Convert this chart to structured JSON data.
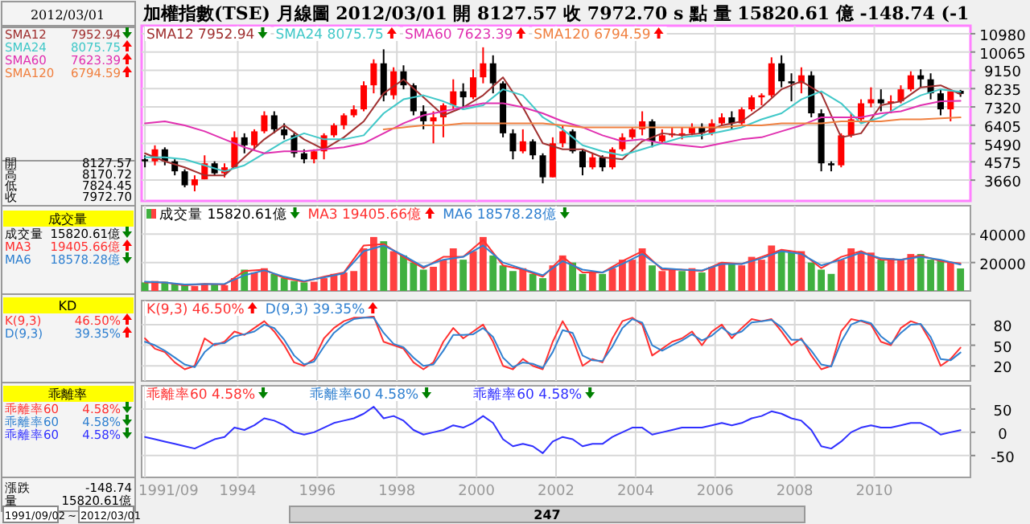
{
  "chart_data": [
    {
      "type": "candlestick",
      "title": "加權指數(TSE)  月線圖  2012/03/01  開 8127.57  收 7972.70 s 點  量 15820.61 億  -148.74 (-1",
      "x": [
        "1991-09",
        "1991-12",
        "1992-03",
        "1992-06",
        "1992-09",
        "1992-12",
        "1993-03",
        "1993-06",
        "1993-09",
        "1993-12",
        "1994-03",
        "1994-06",
        "1994-09",
        "1994-12",
        "1995-03",
        "1995-06",
        "1995-09",
        "1995-12",
        "1996-03",
        "1996-06",
        "1996-09",
        "1996-12",
        "1997-03",
        "1997-06",
        "1997-09",
        "1997-12",
        "1998-03",
        "1998-06",
        "1998-09",
        "1998-12",
        "1999-03",
        "1999-06",
        "1999-09",
        "1999-12",
        "2000-03",
        "2000-06",
        "2000-09",
        "2000-12",
        "2001-03",
        "2001-06",
        "2001-09",
        "2001-12",
        "2002-03",
        "2002-06",
        "2002-09",
        "2002-12",
        "2003-03",
        "2003-06",
        "2003-09",
        "2003-12",
        "2004-03",
        "2004-06",
        "2004-09",
        "2004-12",
        "2005-03",
        "2005-06",
        "2005-09",
        "2005-12",
        "2006-03",
        "2006-06",
        "2006-09",
        "2006-12",
        "2007-03",
        "2007-06",
        "2007-09",
        "2007-12",
        "2008-03",
        "2008-06",
        "2008-09",
        "2008-12",
        "2009-03",
        "2009-06",
        "2009-09",
        "2009-12",
        "2010-03",
        "2010-06",
        "2010-09",
        "2010-12",
        "2011-03",
        "2011-06",
        "2011-09",
        "2011-12",
        "2012-03"
      ],
      "ohlc": [
        [
          4700,
          4900,
          4300,
          4600
        ],
        [
          4600,
          5400,
          4400,
          5200
        ],
        [
          5200,
          5300,
          4400,
          4600
        ],
        [
          4600,
          4700,
          3900,
          4100
        ],
        [
          4100,
          4200,
          3300,
          3400
        ],
        [
          3400,
          3900,
          3100,
          3700
        ],
        [
          3700,
          4900,
          3700,
          4500
        ],
        [
          4500,
          4600,
          3900,
          4000
        ],
        [
          4000,
          4500,
          3800,
          4300
        ],
        [
          4300,
          6100,
          4300,
          5800
        ],
        [
          5800,
          6000,
          5000,
          5400
        ],
        [
          5400,
          6200,
          5200,
          6100
        ],
        [
          6100,
          7100,
          6000,
          6900
        ],
        [
          6900,
          7100,
          6000,
          6200
        ],
        [
          6200,
          6500,
          5700,
          5900
        ],
        [
          5900,
          6000,
          4800,
          5000
        ],
        [
          5000,
          5200,
          4500,
          4700
        ],
        [
          4700,
          5200,
          4500,
          5100
        ],
        [
          5100,
          6000,
          4700,
          5900
        ],
        [
          5900,
          6500,
          5800,
          6400
        ],
        [
          6400,
          7000,
          6200,
          6900
        ],
        [
          6900,
          7400,
          6800,
          7200
        ],
        [
          7200,
          8600,
          7100,
          8400
        ],
        [
          8400,
          9700,
          8000,
          9500
        ],
        [
          9500,
          10200,
          7600,
          7900
        ],
        [
          7900,
          9300,
          7700,
          9100
        ],
        [
          9100,
          9400,
          8200,
          8400
        ],
        [
          8400,
          8500,
          6900,
          7100
        ],
        [
          7100,
          7400,
          6200,
          6600
        ],
        [
          6600,
          7100,
          5500,
          6800
        ],
        [
          6800,
          7500,
          5800,
          7400
        ],
        [
          7400,
          8700,
          7200,
          8100
        ],
        [
          8100,
          8500,
          7300,
          7800
        ],
        [
          7800,
          9200,
          7700,
          8800
        ],
        [
          8800,
          10300,
          8500,
          9500
        ],
        [
          9500,
          9900,
          8000,
          8500
        ],
        [
          8500,
          8600,
          5800,
          6000
        ],
        [
          6000,
          6200,
          4700,
          5100
        ],
        [
          5100,
          6200,
          5000,
          5600
        ],
        [
          5600,
          5700,
          4700,
          4900
        ],
        [
          4900,
          5000,
          3500,
          3800
        ],
        [
          3800,
          5800,
          3800,
          5500
        ],
        [
          5500,
          6400,
          5300,
          6100
        ],
        [
          6100,
          6200,
          5000,
          5100
        ],
        [
          5100,
          5200,
          3900,
          4300
        ],
        [
          4300,
          5000,
          4200,
          4800
        ],
        [
          4800,
          4900,
          4100,
          4300
        ],
        [
          4300,
          5300,
          4200,
          5200
        ],
        [
          5200,
          6000,
          5100,
          5800
        ],
        [
          5800,
          6300,
          5700,
          6200
        ],
        [
          6200,
          7100,
          5900,
          6600
        ],
        [
          6600,
          6700,
          5300,
          5600
        ],
        [
          5600,
          6200,
          5500,
          5900
        ],
        [
          5900,
          6300,
          5800,
          6000
        ],
        [
          6000,
          6300,
          5700,
          6000
        ],
        [
          6000,
          6500,
          5900,
          6300
        ],
        [
          6300,
          6500,
          5700,
          6000
        ],
        [
          6000,
          6700,
          5900,
          6500
        ],
        [
          6500,
          7000,
          6400,
          6800
        ],
        [
          6800,
          7100,
          6200,
          6500
        ],
        [
          6500,
          7300,
          6400,
          7200
        ],
        [
          7200,
          7900,
          7100,
          7800
        ],
        [
          7800,
          8000,
          7400,
          7900
        ],
        [
          7900,
          9800,
          7800,
          9500
        ],
        [
          9500,
          9900,
          8300,
          8600
        ],
        [
          8600,
          9000,
          7600,
          8500
        ],
        [
          8500,
          9300,
          8000,
          8900
        ],
        [
          8900,
          9100,
          6800,
          7000
        ],
        [
          7000,
          7200,
          4100,
          4500
        ],
        [
          4500,
          4600,
          4100,
          4400
        ],
        [
          4400,
          6000,
          4300,
          5900
        ],
        [
          5900,
          7000,
          5800,
          6700
        ],
        [
          6700,
          7700,
          6500,
          7500
        ],
        [
          7500,
          8300,
          7300,
          7700
        ],
        [
          7700,
          8200,
          7100,
          7500
        ],
        [
          7500,
          7900,
          7000,
          7600
        ],
        [
          7600,
          8400,
          7500,
          8200
        ],
        [
          8200,
          9100,
          8100,
          8900
        ],
        [
          8900,
          9200,
          8300,
          8700
        ],
        [
          8700,
          9000,
          7700,
          8000
        ],
        [
          8000,
          8200,
          6900,
          7200
        ],
        [
          7200,
          8100,
          6600,
          8100
        ],
        [
          8127.57,
          8170.72,
          7824.45,
          7972.7
        ]
      ],
      "series": [
        {
          "type": "line",
          "name": "SMA12 7952.94",
          "color": "#a03030",
          "x": [
            "1991-09",
            "1992-03",
            "1992-09",
            "1993-03",
            "1993-09",
            "1994-03",
            "1994-09",
            "1995-03",
            "1995-09",
            "1996-03",
            "1996-09",
            "1997-03",
            "1997-09",
            "1998-03",
            "1998-09",
            "1999-03",
            "1999-09",
            "2000-03",
            "2000-09",
            "2001-03",
            "2001-09",
            "2002-03",
            "2002-09",
            "2003-03",
            "2003-09",
            "2004-03",
            "2004-09",
            "2005-03",
            "2005-09",
            "2006-03",
            "2006-09",
            "2007-03",
            "2007-09",
            "2008-03",
            "2008-09",
            "2009-03",
            "2009-09",
            "2010-03",
            "2010-09",
            "2011-03",
            "2011-09",
            "2012-03"
          ],
          "values": [
            5000,
            4600,
            4300,
            3900,
            3900,
            4800,
            5700,
            6400,
            5700,
            5200,
            5800,
            6600,
            8000,
            8700,
            7800,
            6900,
            7300,
            7900,
            8800,
            7300,
            5500,
            5200,
            5200,
            4800,
            4700,
            5600,
            6000,
            5900,
            6000,
            6400,
            6600,
            7300,
            8200,
            8600,
            8000,
            5800,
            6000,
            7400,
            7600,
            8300,
            8400,
            7952.94
          ]
        },
        {
          "type": "line",
          "name": "SMA24 8075.75",
          "color": "#40c8c8",
          "x": [
            "1991-09",
            "1992-03",
            "1992-09",
            "1993-03",
            "1993-09",
            "1994-03",
            "1994-09",
            "1995-03",
            "1995-09",
            "1996-03",
            "1996-09",
            "1997-03",
            "1997-09",
            "1998-03",
            "1998-09",
            "1999-03",
            "1999-09",
            "2000-03",
            "2000-09",
            "2001-03",
            "2001-09",
            "2002-03",
            "2002-09",
            "2003-03",
            "2003-09",
            "2004-03",
            "2004-09",
            "2005-03",
            "2005-09",
            "2006-03",
            "2006-09",
            "2007-03",
            "2007-09",
            "2008-03",
            "2008-09",
            "2009-03",
            "2009-09",
            "2010-03",
            "2010-09",
            "2011-03",
            "2011-09",
            "2012-03"
          ],
          "values": [
            4800,
            4800,
            4700,
            4400,
            4100,
            4400,
            5000,
            5600,
            6000,
            5700,
            5700,
            5900,
            7000,
            7700,
            7900,
            7600,
            7200,
            7400,
            8200,
            7900,
            6800,
            6200,
            5400,
            5100,
            4900,
            5200,
            5500,
            5800,
            5900,
            6100,
            6300,
            6700,
            7000,
            7700,
            8100,
            7500,
            6500,
            6800,
            7400,
            7900,
            8200,
            8075.75
          ]
        },
        {
          "type": "line",
          "name": "SMA60 7623.39",
          "color": "#e030b0",
          "x": [
            "1991-09",
            "1992-03",
            "1992-09",
            "1993-03",
            "1993-09",
            "1994-03",
            "1994-09",
            "1995-03",
            "1995-09",
            "1996-03",
            "1996-09",
            "1997-03",
            "1997-09",
            "1998-03",
            "1998-09",
            "1999-03",
            "1999-09",
            "2000-03",
            "2000-09",
            "2001-03",
            "2001-09",
            "2002-03",
            "2002-09",
            "2003-03",
            "2003-09",
            "2004-03",
            "2004-09",
            "2005-03",
            "2005-09",
            "2006-03",
            "2006-09",
            "2007-03",
            "2007-09",
            "2008-03",
            "2008-09",
            "2009-03",
            "2009-09",
            "2010-03",
            "2010-09",
            "2011-03",
            "2011-09",
            "2012-03"
          ],
          "values": [
            6500,
            6600,
            6400,
            6100,
            5700,
            5300,
            5000,
            5100,
            5100,
            5200,
            5300,
            5500,
            6000,
            6500,
            6900,
            7100,
            7300,
            7500,
            7500,
            7300,
            7000,
            6600,
            6300,
            5900,
            5600,
            5700,
            5500,
            5400,
            5300,
            5500,
            5700,
            5800,
            6100,
            6400,
            6800,
            6800,
            6800,
            7000,
            7100,
            7400,
            7600,
            7623.39
          ]
        },
        {
          "type": "line",
          "name": "SMA120 6794.59",
          "color": "#f08040",
          "x": [
            "1997-09",
            "1998-03",
            "1998-09",
            "1999-03",
            "1999-09",
            "2000-03",
            "2000-09",
            "2001-03",
            "2001-09",
            "2002-03",
            "2002-09",
            "2003-03",
            "2003-09",
            "2004-03",
            "2004-09",
            "2005-03",
            "2005-09",
            "2006-03",
            "2006-09",
            "2007-03",
            "2007-09",
            "2008-03",
            "2008-09",
            "2009-03",
            "2009-09",
            "2010-03",
            "2010-09",
            "2011-03",
            "2011-09",
            "2012-03"
          ],
          "values": [
            6200,
            6300,
            6400,
            6400,
            6500,
            6500,
            6500,
            6500,
            6500,
            6400,
            6300,
            6300,
            6300,
            6300,
            6300,
            6300,
            6300,
            6300,
            6400,
            6400,
            6500,
            6500,
            6500,
            6600,
            6600,
            6600,
            6700,
            6700,
            6750,
            6794.59
          ]
        }
      ],
      "xlim": [
        "1991-08",
        "2012-06"
      ],
      "xticks": [
        "1991-09",
        "1994",
        "1996",
        "1998",
        "2000",
        "2002",
        "2004",
        "2006",
        "2008",
        "2010"
      ],
      "ylim": [
        2620,
        11380
      ],
      "yticks": [
        3660,
        4575,
        5490,
        6405,
        7320,
        8235,
        9150,
        10065,
        10980
      ],
      "grid": true,
      "legend": "top left",
      "tick_labels": "y"
    },
    {
      "type": "bar",
      "x": [
        "1991-09",
        "1991-12",
        "1992-03",
        "1992-06",
        "1992-09",
        "1992-12",
        "1993-03",
        "1993-06",
        "1993-09",
        "1993-12",
        "1994-03",
        "1994-06",
        "1994-09",
        "1994-12",
        "1995-03",
        "1995-06",
        "1995-09",
        "1995-12",
        "1996-03",
        "1996-06",
        "1996-09",
        "1996-12",
        "1997-03",
        "1997-06",
        "1997-09",
        "1997-12",
        "1998-03",
        "1998-06",
        "1998-09",
        "1998-12",
        "1999-03",
        "1999-06",
        "1999-09",
        "1999-12",
        "2000-03",
        "2000-06",
        "2000-09",
        "2000-12",
        "2001-03",
        "2001-06",
        "2001-09",
        "2001-12",
        "2002-03",
        "2002-06",
        "2002-09",
        "2002-12",
        "2003-03",
        "2003-06",
        "2003-09",
        "2003-12",
        "2004-03",
        "2004-06",
        "2004-09",
        "2004-12",
        "2005-03",
        "2005-06",
        "2005-09",
        "2005-12",
        "2006-03",
        "2006-06",
        "2006-09",
        "2006-12",
        "2007-03",
        "2007-06",
        "2007-09",
        "2007-12",
        "2008-03",
        "2008-06",
        "2008-09",
        "2008-12",
        "2009-03",
        "2009-06",
        "2009-09",
        "2009-12",
        "2010-03",
        "2010-06",
        "2010-09",
        "2010-12",
        "2011-03",
        "2011-06",
        "2011-09",
        "2011-12",
        "2012-03"
      ],
      "series": [
        {
          "name": "成交量 15820.61億",
          "colors": [
            "#40b040",
            "#ff4040",
            "#40b040",
            "#40b040",
            "#40b040",
            "#ff4040",
            "#ff4040",
            "#40b040",
            "#ff4040",
            "#ff4040",
            "#40b040",
            "#ff4040",
            "#ff4040",
            "#40b040",
            "#40b040",
            "#40b040",
            "#40b040",
            "#ff4040",
            "#ff4040",
            "#ff4040",
            "#ff4040",
            "#ff4040",
            "#ff4040",
            "#ff4040",
            "#40b040",
            "#ff4040",
            "#40b040",
            "#40b040",
            "#40b040",
            "#ff4040",
            "#ff4040",
            "#ff4040",
            "#40b040",
            "#ff4040",
            "#ff4040",
            "#40b040",
            "#40b040",
            "#40b040",
            "#ff4040",
            "#40b040",
            "#40b040",
            "#ff4040",
            "#ff4040",
            "#40b040",
            "#40b040",
            "#ff4040",
            "#40b040",
            "#ff4040",
            "#ff4040",
            "#ff4040",
            "#ff4040",
            "#40b040",
            "#ff4040",
            "#ff4040",
            "#40b040",
            "#ff4040",
            "#40b040",
            "#ff4040",
            "#ff4040",
            "#40b040",
            "#ff4040",
            "#ff4040",
            "#ff4040",
            "#ff4040",
            "#40b040",
            "#40b040",
            "#ff4040",
            "#40b040",
            "#40b040",
            "#40b040",
            "#ff4040",
            "#ff4040",
            "#ff4040",
            "#ff4040",
            "#40b040",
            "#ff4040",
            "#ff4040",
            "#ff4040",
            "#40b040",
            "#40b040",
            "#40b040",
            "#ff4040",
            "#40b040"
          ],
          "values": [
            6000,
            7000,
            6500,
            5000,
            4000,
            3500,
            5000,
            4500,
            4000,
            9000,
            15000,
            13000,
            16000,
            12000,
            9000,
            7000,
            6000,
            6500,
            9000,
            12000,
            13000,
            14000,
            30000,
            38000,
            35000,
            28000,
            25000,
            20000,
            15000,
            17000,
            22000,
            30000,
            22000,
            28000,
            38000,
            25000,
            18000,
            14000,
            16000,
            12000,
            9000,
            18000,
            25000,
            20000,
            12000,
            13000,
            12000,
            16000,
            22000,
            22000,
            30000,
            18000,
            14000,
            15000,
            14000,
            16000,
            13000,
            17000,
            20000,
            19000,
            18000,
            24000,
            22000,
            32000,
            28000,
            27000,
            28000,
            20000,
            15000,
            12000,
            22000,
            30000,
            27000,
            27000,
            22000,
            23000,
            22000,
            26000,
            26000,
            22000,
            22000,
            20000,
            15820.61
          ]
        },
        {
          "type": "line",
          "name": "MA3 19405.66億",
          "color": "#ff3030",
          "x": [
            "1991-09",
            "1992-03",
            "1992-09",
            "1993-03",
            "1993-09",
            "1994-03",
            "1994-09",
            "1995-03",
            "1995-09",
            "1996-03",
            "1996-09",
            "1997-03",
            "1997-09",
            "1998-03",
            "1998-09",
            "1999-03",
            "1999-09",
            "2000-03",
            "2000-09",
            "2001-03",
            "2001-09",
            "2002-03",
            "2002-09",
            "2003-03",
            "2003-09",
            "2004-03",
            "2004-09",
            "2005-03",
            "2005-09",
            "2006-03",
            "2006-09",
            "2007-03",
            "2007-09",
            "2008-03",
            "2008-09",
            "2009-03",
            "2009-09",
            "2010-03",
            "2010-09",
            "2011-03",
            "2011-09",
            "2012-03"
          ],
          "values": [
            6000,
            6000,
            4000,
            5000,
            4500,
            14000,
            15000,
            9000,
            6500,
            10000,
            13000,
            32000,
            33000,
            24000,
            16000,
            24000,
            24000,
            36000,
            18000,
            15000,
            10000,
            24000,
            13000,
            13000,
            21000,
            28000,
            15000,
            15000,
            14000,
            20000,
            19000,
            24000,
            29000,
            27000,
            16000,
            24000,
            28000,
            22000,
            22000,
            25000,
            21000,
            19405.66
          ]
        },
        {
          "type": "line",
          "name": "MA6 18578.28億",
          "color": "#3080d0",
          "x": [
            "1991-09",
            "1992-03",
            "1992-09",
            "1993-03",
            "1993-09",
            "1994-03",
            "1994-09",
            "1995-03",
            "1995-09",
            "1996-03",
            "1996-09",
            "1997-03",
            "1997-09",
            "1998-03",
            "1998-09",
            "1999-03",
            "1999-09",
            "2000-03",
            "2000-09",
            "2001-03",
            "2001-09",
            "2002-03",
            "2002-09",
            "2003-03",
            "2003-09",
            "2004-03",
            "2004-09",
            "2005-03",
            "2005-09",
            "2006-03",
            "2006-09",
            "2007-03",
            "2007-09",
            "2008-03",
            "2008-09",
            "2009-03",
            "2009-09",
            "2010-03",
            "2010-09",
            "2011-03",
            "2011-09",
            "2012-03"
          ],
          "values": [
            6500,
            6000,
            4500,
            4800,
            5000,
            11000,
            14500,
            10000,
            7000,
            9500,
            12500,
            28000,
            32000,
            25000,
            17000,
            22000,
            24000,
            32000,
            20000,
            15500,
            11000,
            21000,
            15000,
            13000,
            19000,
            26000,
            16000,
            15000,
            14500,
            19000,
            19000,
            23000,
            28000,
            26000,
            18000,
            22000,
            27000,
            23000,
            22000,
            24000,
            22000,
            18578.28
          ]
        }
      ],
      "xlim": [
        "1991-08",
        "2012-06"
      ],
      "xticks": [
        "1991-09",
        "1994",
        "1996",
        "1998",
        "2000",
        "2002",
        "2004",
        "2006",
        "2008",
        "2010"
      ],
      "ylim": [
        0,
        60000
      ],
      "yticks": [
        20000,
        40000
      ],
      "grid": true,
      "legend": "top left",
      "tick_labels": "y"
    },
    {
      "type": "line",
      "x": [
        "1991-09",
        "1991-12",
        "1992-03",
        "1992-06",
        "1992-09",
        "1992-12",
        "1993-03",
        "1993-06",
        "1993-09",
        "1993-12",
        "1994-03",
        "1994-06",
        "1994-09",
        "1994-12",
        "1995-03",
        "1995-06",
        "1995-09",
        "1995-12",
        "1996-03",
        "1996-06",
        "1996-09",
        "1996-12",
        "1997-03",
        "1997-06",
        "1997-09",
        "1997-12",
        "1998-03",
        "1998-06",
        "1998-09",
        "1998-12",
        "1999-03",
        "1999-06",
        "1999-09",
        "1999-12",
        "2000-03",
        "2000-06",
        "2000-09",
        "2000-12",
        "2001-03",
        "2001-06",
        "2001-09",
        "2001-12",
        "2002-03",
        "2002-06",
        "2002-09",
        "2002-12",
        "2003-03",
        "2003-06",
        "2003-09",
        "2003-12",
        "2004-03",
        "2004-06",
        "2004-09",
        "2004-12",
        "2005-03",
        "2005-06",
        "2005-09",
        "2005-12",
        "2006-03",
        "2006-06",
        "2006-09",
        "2006-12",
        "2007-03",
        "2007-06",
        "2007-09",
        "2007-12",
        "2008-03",
        "2008-06",
        "2008-09",
        "2008-12",
        "2009-03",
        "2009-06",
        "2009-09",
        "2009-12",
        "2010-03",
        "2010-06",
        "2010-09",
        "2010-12",
        "2011-03",
        "2011-06",
        "2011-09",
        "2011-12",
        "2012-03"
      ],
      "series": [
        {
          "name": "K(9,3) 46.50%",
          "color": "#ff3030",
          "values": [
            60,
            45,
            40,
            25,
            15,
            20,
            60,
            50,
            55,
            70,
            65,
            75,
            85,
            70,
            50,
            25,
            20,
            30,
            60,
            75,
            85,
            90,
            90,
            92,
            55,
            50,
            45,
            25,
            15,
            25,
            55,
            75,
            60,
            70,
            80,
            55,
            20,
            15,
            30,
            20,
            15,
            55,
            85,
            60,
            20,
            30,
            25,
            60,
            85,
            90,
            80,
            35,
            45,
            55,
            60,
            70,
            50,
            70,
            80,
            60,
            75,
            88,
            85,
            88,
            70,
            50,
            60,
            35,
            15,
            20,
            70,
            88,
            85,
            80,
            55,
            50,
            75,
            85,
            80,
            55,
            20,
            30,
            46.5
          ]
        },
        {
          "name": "D(9,3) 39.35%",
          "color": "#3080d0",
          "values": [
            55,
            50,
            42,
            32,
            22,
            18,
            40,
            52,
            53,
            63,
            66,
            70,
            80,
            75,
            58,
            35,
            22,
            26,
            48,
            68,
            80,
            88,
            90,
            90,
            68,
            52,
            47,
            32,
            20,
            22,
            42,
            65,
            65,
            66,
            75,
            62,
            32,
            18,
            25,
            23,
            17,
            40,
            72,
            68,
            35,
            28,
            27,
            48,
            75,
            88,
            83,
            50,
            42,
            50,
            57,
            66,
            57,
            64,
            76,
            65,
            70,
            83,
            85,
            87,
            76,
            58,
            58,
            42,
            22,
            19,
            55,
            80,
            86,
            82,
            63,
            52,
            68,
            80,
            81,
            62,
            30,
            28,
            39.35
          ]
        }
      ],
      "xlim": [
        "1991-08",
        "2012-06"
      ],
      "xticks": [
        "1991-09",
        "1994",
        "1996",
        "1998",
        "2000",
        "2002",
        "2004",
        "2006",
        "2008",
        "2010"
      ],
      "ylim": [
        -2,
        115
      ],
      "yticks": [
        20,
        50,
        80
      ],
      "grid": true,
      "legend": "top left",
      "tick_labels": "y"
    },
    {
      "type": "line",
      "x": [
        "1991-09",
        "1991-12",
        "1992-03",
        "1992-06",
        "1992-09",
        "1992-12",
        "1993-03",
        "1993-06",
        "1993-09",
        "1993-12",
        "1994-03",
        "1994-06",
        "1994-09",
        "1994-12",
        "1995-03",
        "1995-06",
        "1995-09",
        "1995-12",
        "1996-03",
        "1996-06",
        "1996-09",
        "1996-12",
        "1997-03",
        "1997-06",
        "1997-09",
        "1997-12",
        "1998-03",
        "1998-06",
        "1998-09",
        "1998-12",
        "1999-03",
        "1999-06",
        "1999-09",
        "1999-12",
        "2000-03",
        "2000-06",
        "2000-09",
        "2000-12",
        "2001-03",
        "2001-06",
        "2001-09",
        "2001-12",
        "2002-03",
        "2002-06",
        "2002-09",
        "2002-12",
        "2003-03",
        "2003-06",
        "2003-09",
        "2003-12",
        "2004-03",
        "2004-06",
        "2004-09",
        "2004-12",
        "2005-03",
        "2005-06",
        "2005-09",
        "2005-12",
        "2006-03",
        "2006-06",
        "2006-09",
        "2006-12",
        "2007-03",
        "2007-06",
        "2007-09",
        "2007-12",
        "2008-03",
        "2008-06",
        "2008-09",
        "2008-12",
        "2009-03",
        "2009-06",
        "2009-09",
        "2009-12",
        "2010-03",
        "2010-06",
        "2010-09",
        "2010-12",
        "2011-03",
        "2011-06",
        "2011-09",
        "2011-12",
        "2012-03"
      ],
      "series": [
        {
          "name": "乖離率60 4.58%",
          "color": "#3030ff",
          "values": [
            -10,
            -15,
            -20,
            -25,
            -30,
            -35,
            -25,
            -15,
            -10,
            10,
            5,
            15,
            30,
            25,
            15,
            0,
            -5,
            0,
            10,
            20,
            25,
            30,
            40,
            55,
            30,
            35,
            25,
            5,
            -5,
            0,
            5,
            15,
            10,
            20,
            35,
            20,
            -15,
            -30,
            -25,
            -30,
            -45,
            -20,
            -10,
            -15,
            -30,
            -25,
            -25,
            -10,
            0,
            10,
            10,
            -5,
            0,
            5,
            10,
            10,
            10,
            15,
            20,
            15,
            20,
            30,
            35,
            45,
            40,
            30,
            25,
            5,
            -30,
            -35,
            -20,
            0,
            10,
            15,
            10,
            10,
            15,
            20,
            20,
            10,
            -5,
            0,
            4.58
          ]
        }
      ],
      "annotations": [
        "乖離率60 4.58%",
        "乖離率60 4.58%"
      ],
      "xlim": [
        "1991-08",
        "2012-06"
      ],
      "xticks": [
        {
          "value": "1991-09",
          "label": "1991/09"
        },
        "1994",
        "1996",
        "1998",
        "2000",
        "2002",
        "2004",
        "2006",
        "2008",
        "2010"
      ],
      "ylim": [
        -97,
        100
      ],
      "yticks": [
        -50,
        0,
        50
      ],
      "grid": true,
      "legend": "top left"
    },
    {
      "type": "other",
      "annotations": [
        "2012/03/01",
        "SMA12",
        "7952.94",
        "SMA24",
        "8075.75",
        "SMA60",
        "7623.39",
        "SMA120",
        "6794.59",
        "開",
        "8127.57",
        "高",
        "8170.72",
        "低",
        "7824.45",
        "收",
        "7972.70",
        "成交量",
        "成交量",
        "15820.61億",
        "MA3",
        "19405.66億",
        "MA6",
        "18578.28億",
        "KD",
        "K(9,3)",
        "46.50%",
        "D(9,3)",
        "39.35%",
        "乖離率",
        "乖離率60",
        "4.58%",
        "乖離率60",
        "4.58%",
        "乖離率60",
        "4.58%",
        "漲跌",
        "-148.74",
        "量",
        "15820.61億",
        "1991/09/02",
        "~",
        "2012/03/01",
        "247"
      ]
    }
  ]
}
